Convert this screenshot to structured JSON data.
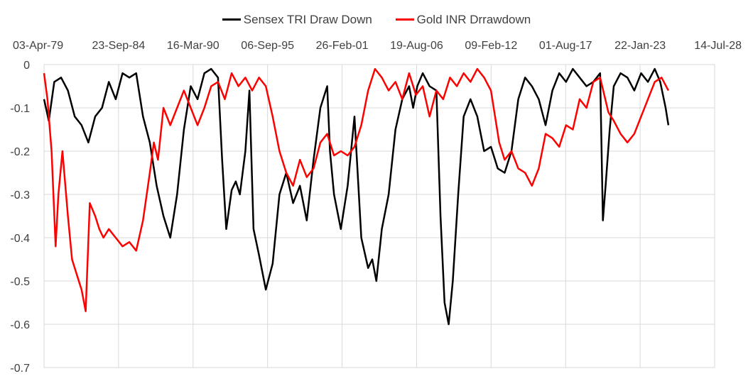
{
  "chart_data": {
    "type": "line",
    "title": "",
    "xlabel": "",
    "ylabel": "",
    "x_tick_labels": [
      "03-Apr-79",
      "23-Sep-84",
      "16-Mar-90",
      "06-Sep-95",
      "26-Feb-01",
      "19-Aug-06",
      "09-Feb-12",
      "01-Aug-17",
      "22-Jan-23",
      "14-Jul-28"
    ],
    "y_ticks": [
      "0",
      "-0.1",
      "-0.2",
      "-0.3",
      "-0.4",
      "-0.5",
      "-0.6",
      "-0.7"
    ],
    "ylim": [
      -0.7,
      0
    ],
    "grid": true,
    "legend_position": "top",
    "series": [
      {
        "name": "Sensex TRI Draw Down",
        "color": "#000000",
        "x": [
          1979.25,
          1979.6,
          1980.0,
          1980.5,
          1981.0,
          1981.5,
          1982.0,
          1982.5,
          1983.0,
          1983.5,
          1984.0,
          1984.5,
          1985.0,
          1985.5,
          1986.0,
          1986.5,
          1987.0,
          1987.5,
          1988.0,
          1988.5,
          1989.0,
          1989.5,
          1990.0,
          1990.5,
          1991.0,
          1991.5,
          1992.0,
          1992.3,
          1992.6,
          1993.0,
          1993.3,
          1993.6,
          1994.0,
          1994.3,
          1994.6,
          1995.0,
          1995.5,
          1996.0,
          1996.5,
          1997.0,
          1997.5,
          1998.0,
          1998.5,
          1999.0,
          1999.5,
          2000.0,
          2000.2,
          2000.5,
          2001.0,
          2001.5,
          2002.0,
          2002.5,
          2003.0,
          2003.3,
          2003.6,
          2004.0,
          2004.5,
          2005.0,
          2005.5,
          2006.0,
          2006.3,
          2006.6,
          2007.0,
          2007.5,
          2008.0,
          2008.3,
          2008.6,
          2008.9,
          2009.2,
          2009.6,
          2010.0,
          2010.5,
          2011.0,
          2011.5,
          2012.0,
          2012.5,
          2013.0,
          2013.5,
          2014.0,
          2014.5,
          2015.0,
          2015.5,
          2016.0,
          2016.5,
          2017.0,
          2017.5,
          2018.0,
          2018.5,
          2019.0,
          2019.5,
          2020.0,
          2020.2,
          2020.4,
          2020.7,
          2021.0,
          2021.5,
          2022.0,
          2022.5,
          2023.0,
          2023.5,
          2024.0,
          2024.4,
          2024.8,
          2025.0
        ],
        "y": [
          -0.08,
          -0.13,
          -0.04,
          -0.03,
          -0.06,
          -0.12,
          -0.14,
          -0.18,
          -0.12,
          -0.1,
          -0.04,
          -0.08,
          -0.02,
          -0.03,
          -0.02,
          -0.12,
          -0.18,
          -0.28,
          -0.35,
          -0.4,
          -0.3,
          -0.15,
          -0.05,
          -0.08,
          -0.02,
          -0.01,
          -0.03,
          -0.22,
          -0.38,
          -0.29,
          -0.27,
          -0.3,
          -0.2,
          -0.06,
          -0.38,
          -0.44,
          -0.52,
          -0.46,
          -0.3,
          -0.25,
          -0.32,
          -0.28,
          -0.36,
          -0.22,
          -0.1,
          -0.05,
          -0.2,
          -0.3,
          -0.38,
          -0.28,
          -0.12,
          -0.4,
          -0.47,
          -0.45,
          -0.5,
          -0.38,
          -0.3,
          -0.15,
          -0.08,
          -0.05,
          -0.1,
          -0.05,
          -0.02,
          -0.05,
          -0.06,
          -0.35,
          -0.55,
          -0.6,
          -0.5,
          -0.3,
          -0.12,
          -0.08,
          -0.12,
          -0.2,
          -0.19,
          -0.24,
          -0.25,
          -0.2,
          -0.08,
          -0.03,
          -0.05,
          -0.08,
          -0.14,
          -0.06,
          -0.02,
          -0.04,
          -0.01,
          -0.03,
          -0.05,
          -0.04,
          -0.02,
          -0.36,
          -0.28,
          -0.15,
          -0.05,
          -0.02,
          -0.03,
          -0.06,
          -0.02,
          -0.04,
          -0.01,
          -0.04,
          -0.1,
          -0.14
        ]
      },
      {
        "name": "Gold INR Drrawdown",
        "color": "#ff0000",
        "x": [
          1979.25,
          1979.5,
          1979.8,
          1980.1,
          1980.3,
          1980.6,
          1981.0,
          1981.3,
          1981.6,
          1982.0,
          1982.3,
          1982.6,
          1983.0,
          1983.3,
          1983.6,
          1984.0,
          1984.5,
          1985.0,
          1985.5,
          1986.0,
          1986.5,
          1987.0,
          1987.3,
          1987.6,
          1988.0,
          1988.5,
          1989.0,
          1989.5,
          1990.0,
          1990.5,
          1991.0,
          1991.5,
          1992.0,
          1992.5,
          1993.0,
          1993.5,
          1994.0,
          1994.5,
          1995.0,
          1995.5,
          1996.0,
          1996.5,
          1997.0,
          1997.5,
          1998.0,
          1998.5,
          1999.0,
          1999.5,
          2000.0,
          2000.5,
          2001.0,
          2001.5,
          2002.0,
          2002.5,
          2003.0,
          2003.5,
          2004.0,
          2004.5,
          2005.0,
          2005.5,
          2006.0,
          2006.5,
          2007.0,
          2007.5,
          2008.0,
          2008.5,
          2009.0,
          2009.5,
          2010.0,
          2010.5,
          2011.0,
          2011.5,
          2012.0,
          2012.3,
          2012.6,
          2013.0,
          2013.5,
          2014.0,
          2014.5,
          2015.0,
          2015.5,
          2016.0,
          2016.5,
          2017.0,
          2017.5,
          2018.0,
          2018.5,
          2019.0,
          2019.5,
          2020.0,
          2020.3,
          2020.6,
          2021.0,
          2021.5,
          2022.0,
          2022.5,
          2023.0,
          2023.5,
          2024.0,
          2024.5,
          2025.0
        ],
        "y": [
          -0.02,
          -0.08,
          -0.2,
          -0.42,
          -0.3,
          -0.2,
          -0.35,
          -0.45,
          -0.48,
          -0.52,
          -0.57,
          -0.32,
          -0.35,
          -0.38,
          -0.4,
          -0.38,
          -0.4,
          -0.42,
          -0.41,
          -0.43,
          -0.36,
          -0.25,
          -0.18,
          -0.22,
          -0.1,
          -0.14,
          -0.1,
          -0.06,
          -0.1,
          -0.14,
          -0.1,
          -0.05,
          -0.04,
          -0.08,
          -0.02,
          -0.05,
          -0.03,
          -0.06,
          -0.03,
          -0.05,
          -0.12,
          -0.2,
          -0.25,
          -0.28,
          -0.22,
          -0.26,
          -0.24,
          -0.18,
          -0.16,
          -0.21,
          -0.2,
          -0.21,
          -0.19,
          -0.14,
          -0.06,
          -0.01,
          -0.03,
          -0.06,
          -0.04,
          -0.08,
          -0.02,
          -0.07,
          -0.05,
          -0.12,
          -0.06,
          -0.08,
          -0.03,
          -0.05,
          -0.02,
          -0.04,
          -0.01,
          -0.03,
          -0.06,
          -0.12,
          -0.18,
          -0.22,
          -0.2,
          -0.24,
          -0.25,
          -0.28,
          -0.24,
          -0.16,
          -0.17,
          -0.19,
          -0.14,
          -0.15,
          -0.08,
          -0.1,
          -0.04,
          -0.03,
          -0.07,
          -0.11,
          -0.13,
          -0.16,
          -0.18,
          -0.16,
          -0.12,
          -0.08,
          -0.04,
          -0.03,
          -0.06
        ]
      }
    ]
  }
}
